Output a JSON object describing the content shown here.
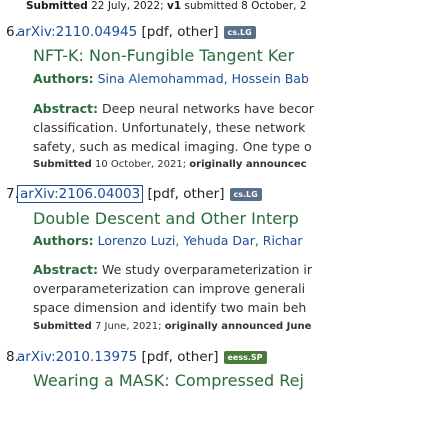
{
  "top_line": {
    "prefix": "Submitted",
    "text": " 22 July, 2022; ",
    "v1": "v1",
    "rest": " submitted 8 October, 2"
  },
  "results": [
    {
      "num": "6.",
      "id": "arXiv:2110.04945",
      "links": "[pdf, other]",
      "badge": "cs.LG",
      "title": "NFT-K: Non-Fungible Tangent Ker",
      "authors_label": "Authors:",
      "authors": "Sina Alemohammad, Hossein Bab",
      "abstract_label": "Abstract:",
      "abstract_lines": [
        " Deep neural networks have becor",
        "classification. Unfortunately, these network",
        "safety, such as medical imaging. One type o"
      ],
      "submitted_label": "Submitted",
      "submitted_text": " 10 October, 2021; ",
      "orig_label": "originally announcec"
    },
    {
      "num": "7.",
      "id": "arXiv:2106.04003",
      "links": "[pdf, other]",
      "badge": "cs.LG",
      "title": "Double Descent and Other Interp",
      "authors_label": "Authors:",
      "authors": "Lorenzo Luzi, Yehuda Dar, Richar",
      "abstract_label": "Abstract:",
      "abstract_lines": [
        " We study overparameterization ir",
        "overparameterization can improve generali",
        "space dimension and identify two main beh"
      ],
      "submitted_label": "Submitted",
      "submitted_text": " 7 June, 2021; ",
      "orig_label": "originally announced June"
    },
    {
      "num": "8.",
      "id": "arXiv:2010.13975",
      "links": "[pdf, other]",
      "badge": "eess.SP",
      "title": "Wearing a MASK: Compressed Rej"
    }
  ]
}
